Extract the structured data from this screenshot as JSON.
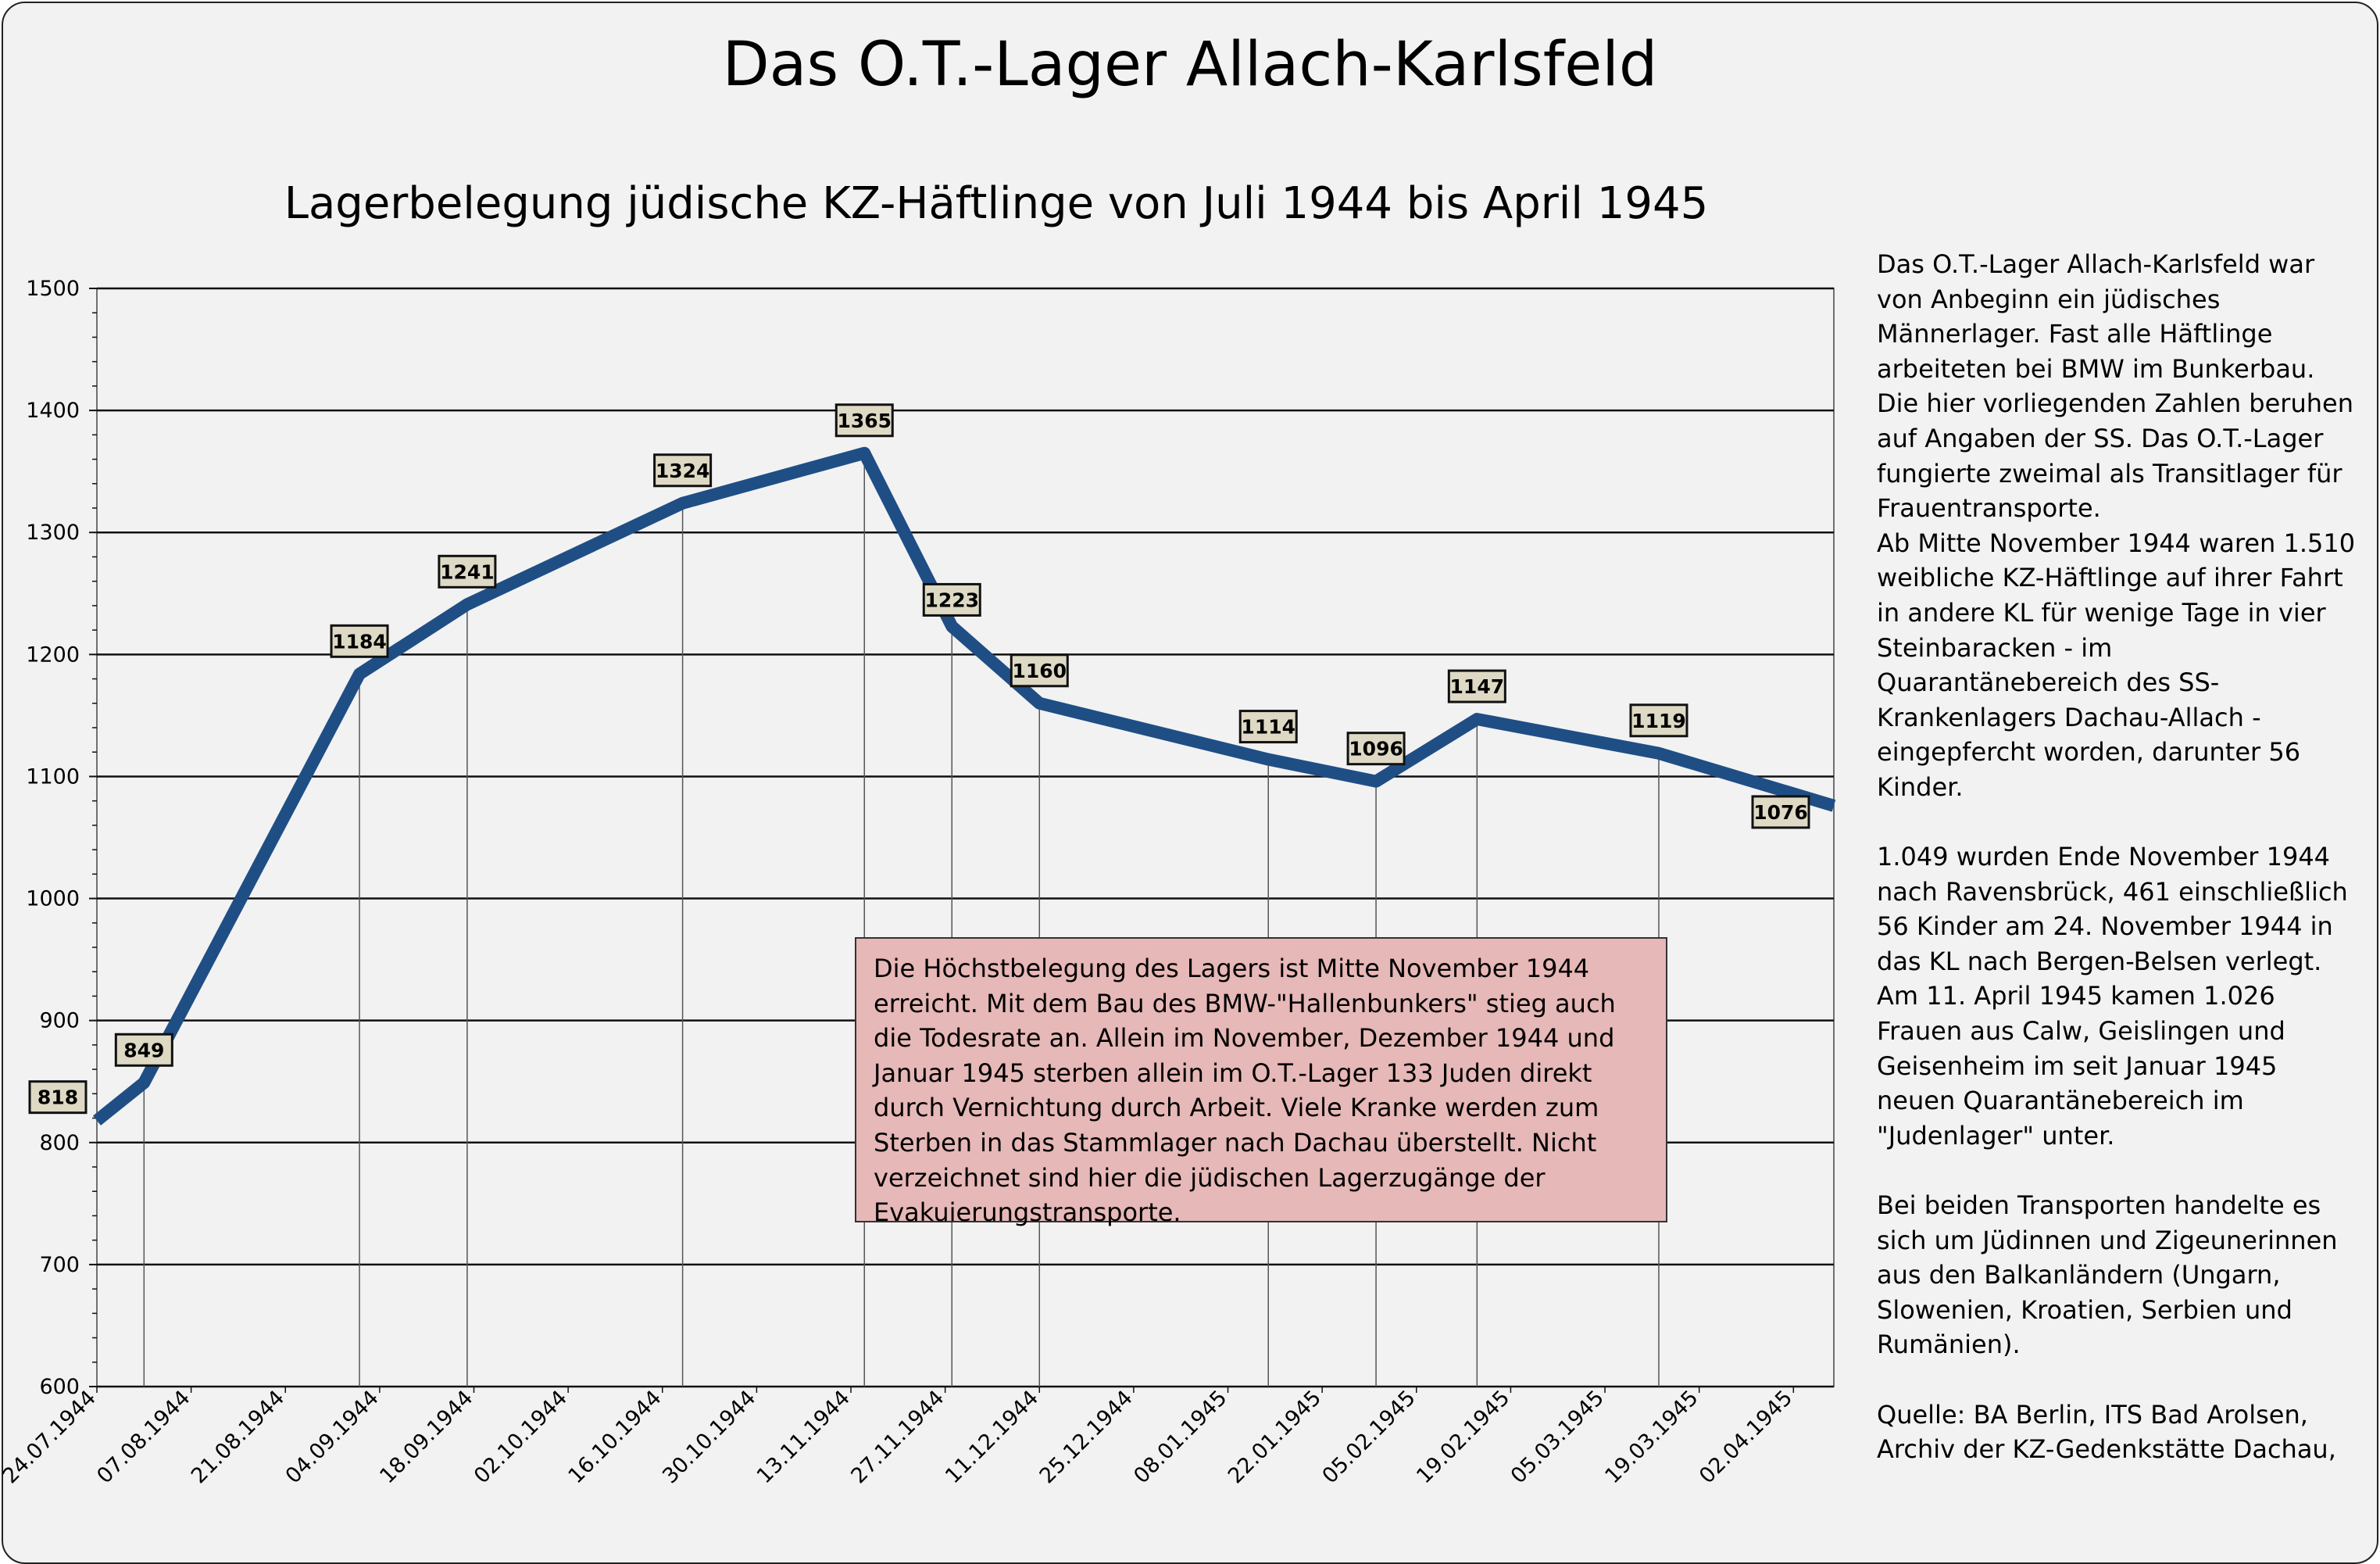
{
  "title": "Das O.T.-Lager Allach-Karlsfeld",
  "side_text": "Das O.T.-Lager Allach-Karlsfeld war von Anbeginn ein jüdisches Männerlager. Fast alle Häftlinge arbeiteten bei BMW im Bunkerbau. Die hier vorliegenden Zahlen beruhen auf Angaben der SS. Das O.T.-Lager fungierte zweimal als Transitlager für Frauentransporte.\nAb Mitte November 1944 waren 1.510 weibliche KZ-Häftlinge auf ihrer Fahrt in andere KL für wenige Tage in vier Steinbaracken - im Quarantänebereich des SS-Krankenlagers Dachau-Allach - eingepfercht worden, darunter 56 Kinder.\n\n1.049 wurden Ende November 1944 nach Ravensbrück, 461 einschließlich 56 Kinder am 24. November 1944 in das KL nach Bergen-Belsen verlegt. Am 11. April 1945 kamen 1.026 Frauen aus Calw, Geislingen und Geisenheim im seit Januar 1945 neuen Quarantänebereich im \"Judenlager\" unter.\n\nBei beiden Transporten handelte es sich um Jüdinnen und Zigeunerinnen aus den Balkanländern (Ungarn, Slowenien, Kroatien, Serbien und Rumänien).\n\nQuelle: BA Berlin, ITS Bad Arolsen, Archiv der KZ-Gedenkstätte Dachau,",
  "note": "Die Höchstbelegung des Lagers ist Mitte November 1944 erreicht. Mit dem Bau des BMW-\"Hallenbunkers\" stieg auch die Todesrate an. Allein im November, Dezember 1944 und Januar 1945 sterben allein im O.T.-Lager 133 Juden direkt durch Vernichtung durch Arbeit. Viele Kranke werden zum Sterben in das Stammlager nach Dachau überstellt. Nicht verzeichnet sind hier die jüdischen Lagerzugänge der Evakuierungstransporte.",
  "colors": {
    "line": "#1f4e85",
    "label_bg": "#ddd9c4",
    "note_bg": "#e6b8b7",
    "background": "#f2f2f2"
  },
  "chart_data": {
    "type": "line",
    "title": "Lagerbelegung jüdische KZ-Häftlinge von Juli 1944 bis April 1945",
    "xlabel": "",
    "ylabel": "",
    "ylim": [
      600,
      1500
    ],
    "xlim": [
      "24.07.1944",
      "08.04.1945"
    ],
    "y_ticks": [
      "600",
      "700",
      "800",
      "900",
      "1000",
      "1100",
      "1200",
      "1300",
      "1400",
      "1500"
    ],
    "x_ticks": [
      "24.07.1944",
      "07.08.1944",
      "21.08.1944",
      "04.09.1944",
      "18.09.1944",
      "02.10.1944",
      "16.10.1944",
      "30.10.1944",
      "13.11.1944",
      "27.11.1944",
      "11.12.1944",
      "25.12.1944",
      "08.01.1945",
      "22.01.1945",
      "05.02.1945",
      "19.02.1945",
      "05.03.1945",
      "19.03.1945",
      "02.04.1945"
    ],
    "grid": "horizontal major",
    "drop_lines": true,
    "series": [
      {
        "x": [
          "24.07.1944",
          "31.07.1944",
          "01.09.1944",
          "17.09.1944",
          "19.10.1944",
          "15.11.1944",
          "28.11.1944",
          "11.12.1944",
          "14.01.1945",
          "30.01.1945",
          "14.02.1945",
          "13.03.1945",
          "08.04.1945"
        ],
        "values": [
          818,
          849,
          1184,
          1241,
          1324,
          1365,
          1223,
          1160,
          1114,
          1096,
          1147,
          1119,
          1076
        ]
      }
    ]
  }
}
